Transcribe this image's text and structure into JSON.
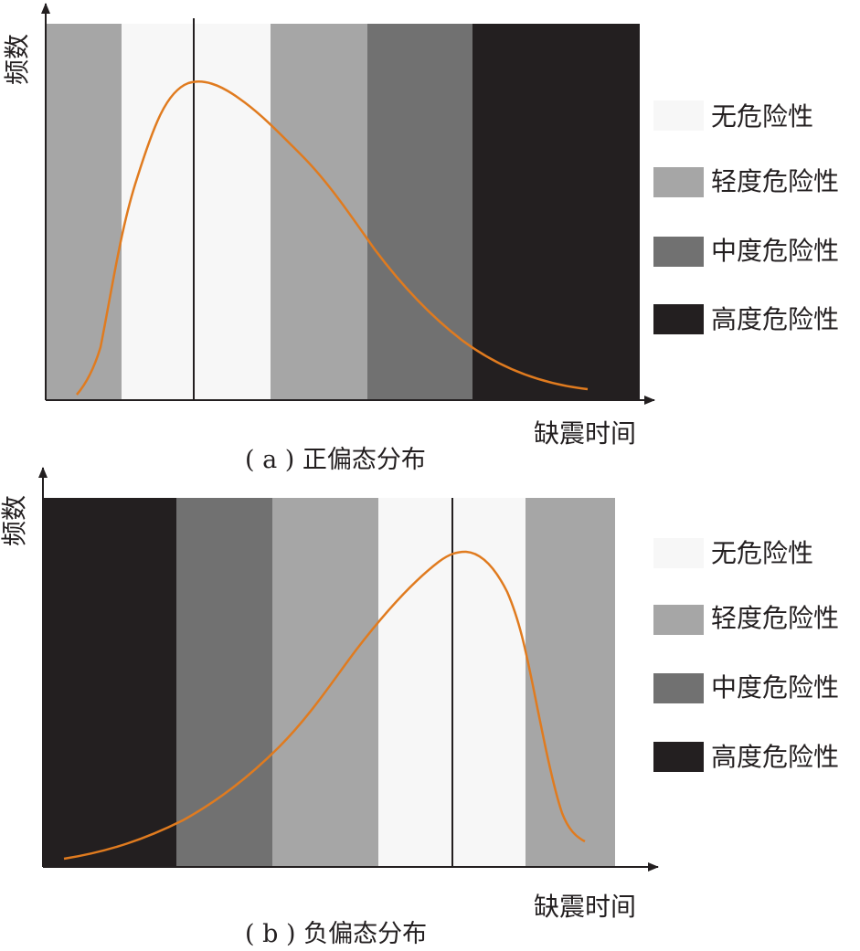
{
  "colors": {
    "safe": "#f7f7f7",
    "light": "#a6a6a6",
    "medium": "#717171",
    "high": "#231f20",
    "curve": "#e07b1f",
    "axis": "#231f20"
  },
  "legend": [
    {
      "key": "safe",
      "label": "无危险性"
    },
    {
      "key": "light",
      "label": "轻度危险性"
    },
    {
      "key": "medium",
      "label": "中度危险性"
    },
    {
      "key": "high",
      "label": "高度危险性"
    }
  ],
  "panels": [
    {
      "id": "a",
      "ylabel": "频数",
      "xlabel": "缺震时间",
      "caption": "( a ) 正偏态分布",
      "bands": [
        "light",
        "safe",
        "light",
        "medium",
        "high"
      ]
    },
    {
      "id": "b",
      "ylabel": "频数",
      "xlabel": "缺震时间",
      "caption": "( b ) 负偏态分布",
      "bands": [
        "high",
        "medium",
        "light",
        "safe",
        "light"
      ]
    }
  ]
}
